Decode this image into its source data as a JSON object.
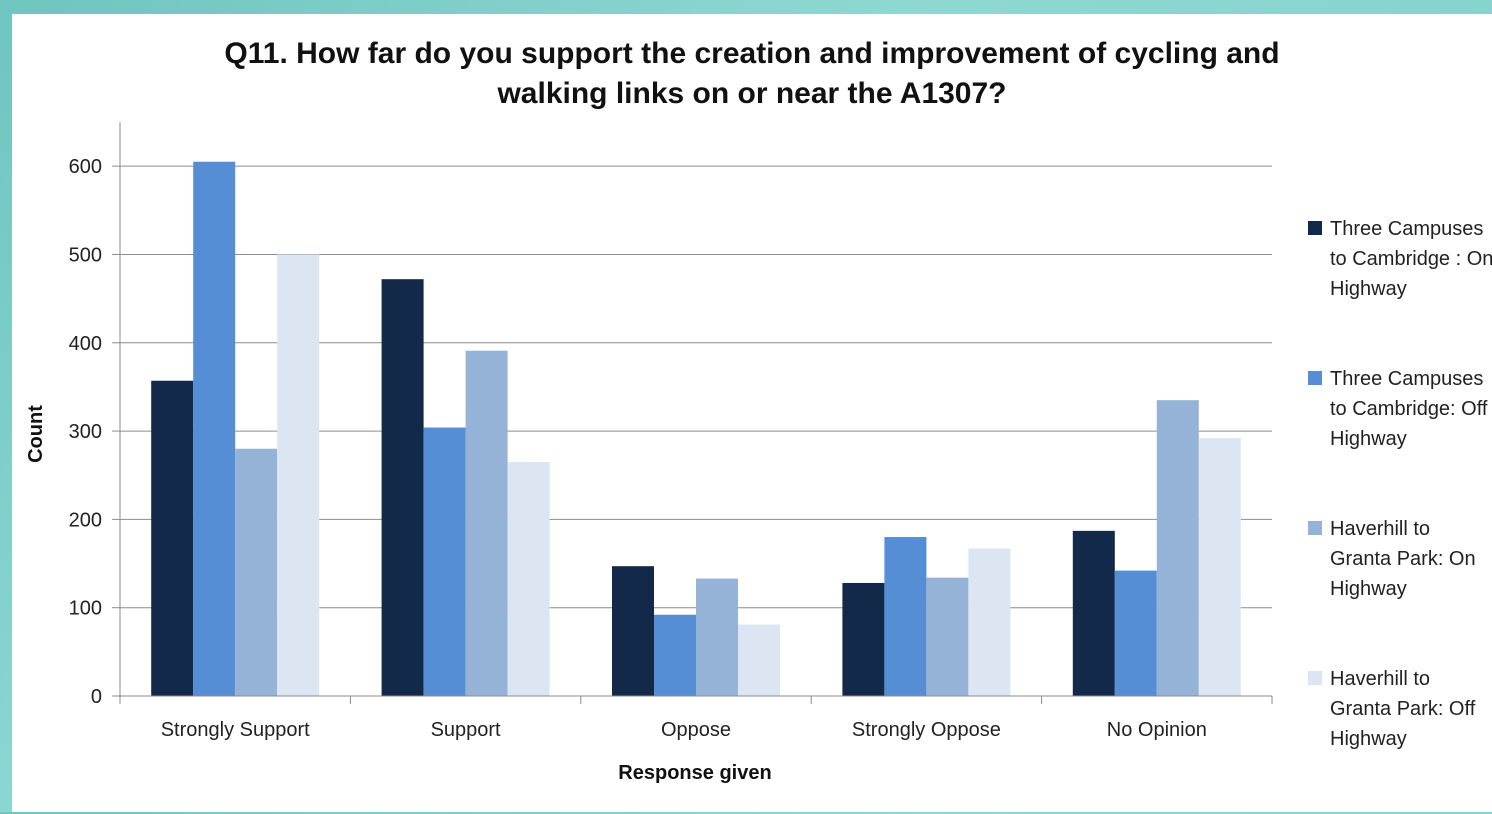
{
  "chart_data": {
    "type": "bar",
    "title_lines": [
      "Q11. How far do you support the creation and improvement of cycling and",
      "walking links on or near the A1307?"
    ],
    "xlabel": "Response given",
    "ylabel": "Count",
    "categories": [
      "Strongly Support",
      "Support",
      "Oppose",
      "Strongly Oppose",
      "No Opinion"
    ],
    "ylim": [
      0,
      650
    ],
    "yticks": [
      0,
      100,
      200,
      300,
      400,
      500,
      600
    ],
    "grid": true,
    "legend_position": "right",
    "series": [
      {
        "name": "Three Campuses to Cambridge : On Highway",
        "color": "#13294a",
        "values": [
          357,
          472,
          147,
          128,
          187
        ]
      },
      {
        "name": "Three Campuses to Cambridge: Off Highway",
        "color": "#558ed5",
        "values": [
          605,
          304,
          92,
          180,
          142
        ]
      },
      {
        "name": "Haverhill to Granta Park: On Highway",
        "color": "#95b3d7",
        "values": [
          280,
          391,
          133,
          134,
          335
        ]
      },
      {
        "name": "Haverhill to Granta Park: Off Highway",
        "color": "#dce6f2",
        "values": [
          500,
          265,
          81,
          167,
          292
        ]
      }
    ]
  }
}
